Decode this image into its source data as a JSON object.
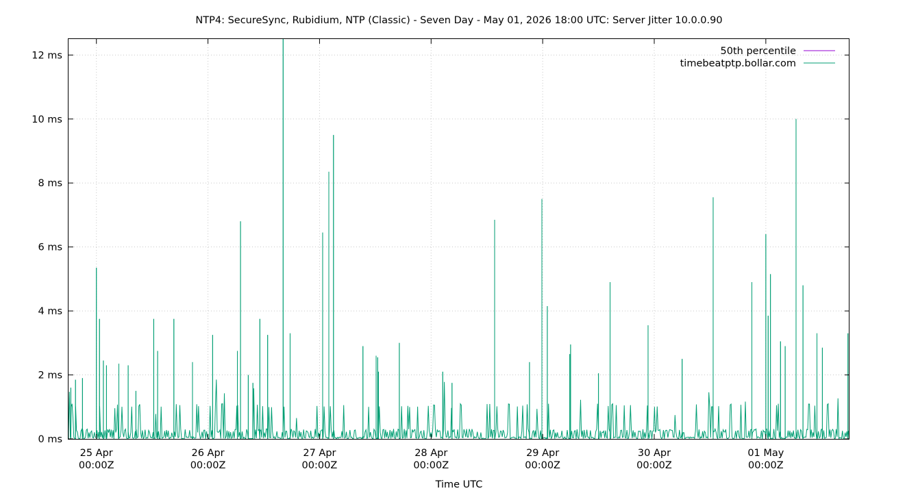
{
  "chart_data": {
    "type": "line",
    "title": "NTP4: SecureSync, Rubidium, NTP (Classic) - Seven Day - May 01, 2026 18:00 UTC: Server Jitter 10.0.0.90",
    "xlabel": "Time UTC",
    "ylabel": "",
    "ylim": [
      0,
      12.5
    ],
    "y_unit": "ms",
    "y_ticks": [
      "0 ms",
      "2 ms",
      "4 ms",
      "6 ms",
      "8 ms",
      "10 ms",
      "12 ms"
    ],
    "x_ticks": [
      {
        "date": "25 Apr",
        "time": "00:00Z"
      },
      {
        "date": "26 Apr",
        "time": "00:00Z"
      },
      {
        "date": "27 Apr",
        "time": "00:00Z"
      },
      {
        "date": "28 Apr",
        "time": "00:00Z"
      },
      {
        "date": "29 Apr",
        "time": "00:00Z"
      },
      {
        "date": "30 Apr",
        "time": "00:00Z"
      },
      {
        "date": "01 May",
        "time": "00:00Z"
      }
    ],
    "x_range": [
      "2026-04-24T18:00Z",
      "2026-05-01T18:00Z"
    ],
    "grid": true,
    "legend_position": "top-right",
    "series": [
      {
        "name": "50th percentile",
        "color": "#9400d3",
        "x": [],
        "values": []
      },
      {
        "name": "timebeatptp.bollar.com",
        "color": "#009e73",
        "x": [
          "2026-04-24T18:30Z",
          "2026-04-24T19:30Z",
          "2026-04-24T21:00Z",
          "2026-04-25T00:00Z",
          "2026-04-25T00:40Z",
          "2026-04-25T01:30Z",
          "2026-04-25T02:10Z",
          "2026-04-25T04:50Z",
          "2026-04-25T06:50Z",
          "2026-04-25T08:30Z",
          "2026-04-25T12:20Z",
          "2026-04-25T13:10Z",
          "2026-04-25T16:40Z",
          "2026-04-25T20:40Z",
          "2026-04-26T01:00Z",
          "2026-04-26T06:20Z",
          "2026-04-26T07:00Z",
          "2026-04-26T08:40Z",
          "2026-04-26T09:40Z",
          "2026-04-26T11:10Z",
          "2026-04-26T12:50Z",
          "2026-04-26T16:10Z",
          "2026-04-26T17:40Z",
          "2026-04-27T00:40Z",
          "2026-04-27T02:00Z",
          "2026-04-27T03:00Z",
          "2026-04-27T09:20Z",
          "2026-04-27T12:10Z",
          "2026-04-27T12:30Z",
          "2026-04-27T12:40Z",
          "2026-04-27T17:10Z",
          "2026-04-28T02:30Z",
          "2026-04-28T04:30Z",
          "2026-04-28T13:40Z",
          "2026-04-28T21:10Z",
          "2026-04-28T23:50Z",
          "2026-04-29T01:00Z",
          "2026-04-29T05:50Z",
          "2026-04-29T06:00Z",
          "2026-04-29T12:00Z",
          "2026-04-29T14:30Z",
          "2026-04-29T22:40Z",
          "2026-04-30T06:00Z",
          "2026-04-30T12:40Z",
          "2026-04-30T21:00Z",
          "2026-05-01T00:00Z",
          "2026-05-01T00:30Z",
          "2026-05-01T01:00Z",
          "2026-05-01T03:10Z",
          "2026-05-01T04:10Z",
          "2026-05-01T06:30Z",
          "2026-05-01T08:00Z",
          "2026-05-01T11:00Z",
          "2026-05-01T12:10Z",
          "2026-05-01T17:40Z"
        ],
        "values": [
          1.6,
          1.85,
          1.9,
          5.35,
          3.75,
          2.45,
          2.3,
          2.35,
          2.3,
          1.5,
          3.75,
          2.75,
          3.75,
          2.4,
          3.25,
          2.75,
          6.8,
          2.0,
          1.75,
          3.75,
          3.25,
          12.5,
          3.3,
          6.45,
          8.35,
          9.5,
          2.9,
          2.6,
          2.55,
          2.1,
          3.0,
          2.1,
          1.75,
          6.85,
          2.4,
          7.5,
          4.15,
          2.65,
          2.95,
          2.05,
          4.9,
          3.55,
          2.5,
          7.55,
          4.9,
          6.4,
          3.85,
          5.15,
          3.05,
          2.9,
          10.0,
          4.8,
          3.3,
          2.85,
          3.3
        ]
      }
    ]
  }
}
